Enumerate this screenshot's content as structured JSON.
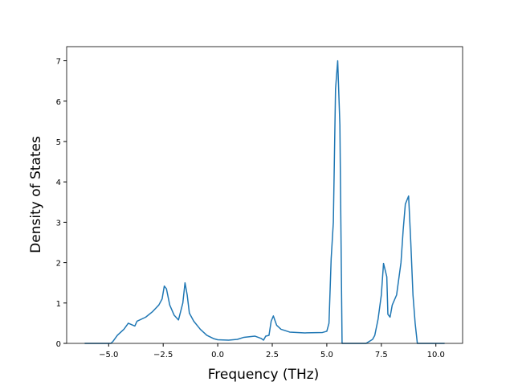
{
  "chart_data": {
    "type": "line",
    "xlabel": "Frequency (THz)",
    "ylabel": "Density of States",
    "x": [
      -6.1,
      -4.9,
      -4.8,
      -4.6,
      -4.3,
      -4.1,
      -3.8,
      -3.7,
      -3.3,
      -3.0,
      -2.7,
      -2.55,
      -2.45,
      -2.35,
      -2.2,
      -2.0,
      -1.8,
      -1.6,
      -1.5,
      -1.4,
      -1.3,
      -1.1,
      -0.8,
      -0.5,
      -0.2,
      0.0,
      0.5,
      0.9,
      1.2,
      1.7,
      2.0,
      2.1,
      2.2,
      2.35,
      2.45,
      2.55,
      2.7,
      2.9,
      3.3,
      4.0,
      4.8,
      5.0,
      5.1,
      5.2,
      5.3,
      5.4,
      5.5,
      5.6,
      5.7,
      6.8,
      7.1,
      7.2,
      7.35,
      7.5,
      7.6,
      7.75,
      7.8,
      7.9,
      8.0,
      8.2,
      8.4,
      8.5,
      8.6,
      8.75,
      8.85,
      8.95,
      9.05,
      9.15,
      10.4
    ],
    "series": [
      {
        "name": "DOS",
        "color": "#1f77b4",
        "values": [
          0,
          0,
          0.05,
          0.2,
          0.35,
          0.5,
          0.43,
          0.55,
          0.65,
          0.78,
          0.95,
          1.1,
          1.42,
          1.35,
          0.95,
          0.7,
          0.58,
          1.0,
          1.5,
          1.2,
          0.75,
          0.55,
          0.35,
          0.2,
          0.12,
          0.09,
          0.08,
          0.1,
          0.15,
          0.18,
          0.12,
          0.08,
          0.18,
          0.2,
          0.55,
          0.68,
          0.45,
          0.35,
          0.28,
          0.26,
          0.27,
          0.3,
          0.5,
          2.1,
          3.0,
          6.3,
          7.0,
          5.4,
          0,
          0,
          0.1,
          0.2,
          0.6,
          1.2,
          1.98,
          1.65,
          0.72,
          0.65,
          0.95,
          1.2,
          2.0,
          2.8,
          3.45,
          3.65,
          2.5,
          1.2,
          0.5,
          0,
          0
        ]
      }
    ],
    "xlim": [
      -6.925,
      11.225
    ],
    "xticks": [
      {
        "value": -5.0,
        "label": "−5.0"
      },
      {
        "value": -2.5,
        "label": "−2.5"
      },
      {
        "value": 0.0,
        "label": "0.0"
      },
      {
        "value": 2.5,
        "label": "2.5"
      },
      {
        "value": 5.0,
        "label": "5.0"
      },
      {
        "value": 7.5,
        "label": "7.5"
      },
      {
        "value": 10.0,
        "label": "10.0"
      }
    ],
    "ylim": [
      0,
      7.35
    ],
    "yticks": [
      0,
      1,
      2,
      3,
      4,
      5,
      6,
      7
    ]
  }
}
